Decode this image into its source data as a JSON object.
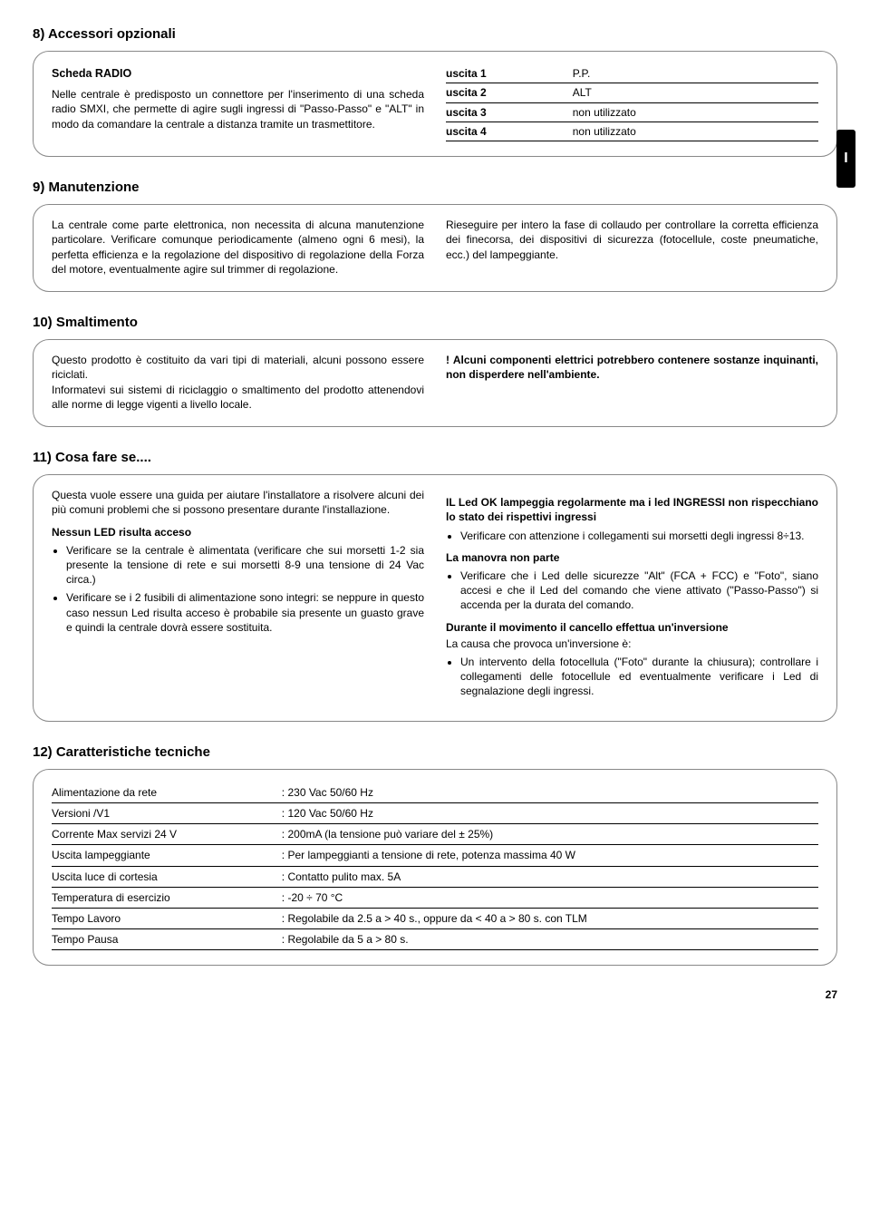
{
  "s8": {
    "title": "8) Accessori opzionali",
    "subhead": "Scheda RADIO",
    "text": "Nelle centrale è predisposto un connettore per l'inserimento di una scheda radio SMXI, che permette di agire sugli ingressi di \"Passo-Passo\" e \"ALT\" in modo da comandare la centrale a distanza tramite un trasmettitore.",
    "tbl": [
      {
        "k": "uscita 1",
        "v": "P.P."
      },
      {
        "k": "uscita 2",
        "v": "ALT"
      },
      {
        "k": "uscita 3",
        "v": "non utilizzato"
      },
      {
        "k": "uscita 4",
        "v": "non utilizzato"
      }
    ],
    "tab": "I"
  },
  "s9": {
    "title": "9) Manutenzione",
    "left": "La centrale come parte elettronica, non necessita di alcuna manutenzione particolare. Verificare comunque periodicamente (almeno ogni 6 mesi), la perfetta efficienza e la regolazione del dispositivo di regolazione della Forza del motore, eventualmente agire sul trimmer di regolazione.",
    "right": "Rieseguire per intero la fase di collaudo per controllare la corretta efficienza dei finecorsa, dei dispositivi di sicurezza (fotocellule, coste pneumatiche, ecc.) del lampeggiante."
  },
  "s10": {
    "title": "10) Smaltimento",
    "left1": "Questo prodotto è costituito da vari tipi di materiali, alcuni possono essere riciclati.",
    "left2": "Informatevi sui sistemi di riciclaggio o smaltimento del prodotto attenendovi alle norme di legge vigenti a livello locale.",
    "right_bold": "Alcuni componenti elettrici potrebbero contenere sostanze inquinanti, non disperdere nell'ambiente.",
    "warn_icon": "!"
  },
  "s11": {
    "title": "11) Cosa fare se....",
    "intro": "Questa vuole essere una guida per aiutare l'installatore a risolvere alcuni dei più comuni problemi che si possono presentare durante l'installazione.",
    "h_left1": "Nessun LED risulta acceso",
    "left1_b1": "Verificare se la centrale è alimentata (verificare che sui morsetti 1-2 sia presente la tensione di rete e sui morsetti 8-9 una tensione di 24 Vac circa.)",
    "left1_b2": "Verificare se i 2 fusibili di alimentazione sono integri: se neppure in questo caso nessun Led risulta acceso è probabile sia presente un guasto grave e quindi la centrale dovrà essere sostituita.",
    "h_right1": "IL Led OK lampeggia regolarmente ma i led INGRESSI non rispecchiano lo stato dei rispettivi ingressi",
    "right1_b1": "Verificare con attenzione i collegamenti sui morsetti degli ingressi 8÷13.",
    "h_right2": "La manovra non parte",
    "right2_b1": "Verificare che i Led delle sicurezze \"Alt\" (FCA + FCC) e \"Foto\", siano accesi e che il Led del comando che viene attivato (\"Passo-Passo\") si accenda per la durata del comando.",
    "h_right3": "Durante il movimento il cancello effettua un'inversione",
    "right3_txt": "La causa che provoca un'inversione è:",
    "right3_b1": "Un intervento della fotocellula (\"Foto\" durante la chiusura); controllare i collegamenti delle fotocellule ed eventualmente verificare i Led di segnalazione degli ingressi."
  },
  "s12": {
    "title": "12) Caratteristiche tecniche",
    "rows": [
      {
        "k": "Alimentazione da rete",
        "v": ": 230 Vac 50/60 Hz",
        "indent": false
      },
      {
        "k": "Versioni /V1",
        "v": ": 120 Vac 50/60 Hz",
        "indent": true
      },
      {
        "k": "Corrente Max servizi 24 V",
        "v": ": 200mA (la tensione può variare del ± 25%)",
        "indent": false
      },
      {
        "k": "Uscita lampeggiante",
        "v": ": Per lampeggianti a tensione di rete, potenza massima 40 W",
        "indent": false
      },
      {
        "k": "Uscita luce di cortesia",
        "v": ": Contatto pulito max. 5A",
        "indent": false
      },
      {
        "k": "Temperatura di esercizio",
        "v": ": -20 ÷ 70 °C",
        "indent": false
      },
      {
        "k": "Tempo Lavoro",
        "v": ": Regolabile da 2.5 a > 40 s., oppure da < 40 a > 80 s. con TLM",
        "indent": false
      },
      {
        "k": "Tempo Pausa",
        "v": ": Regolabile da 5 a > 80 s.",
        "indent": false
      }
    ]
  },
  "page": "27"
}
